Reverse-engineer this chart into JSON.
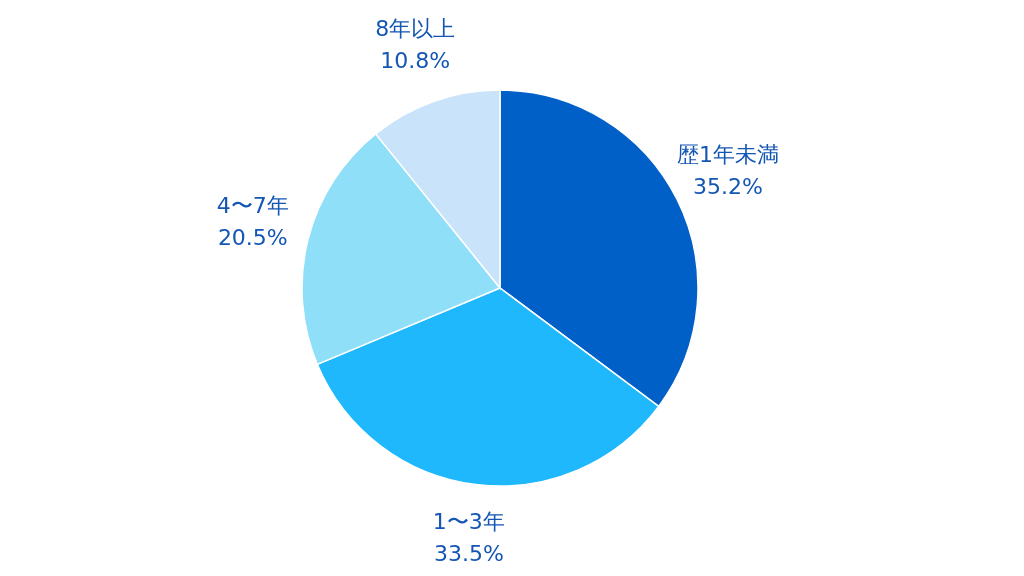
{
  "chart_data": {
    "type": "pie",
    "categories": [
      "歴1年未満",
      "1〜3年",
      "4〜7年",
      "8年以上"
    ],
    "values": [
      35.2,
      33.5,
      20.5,
      10.8
    ],
    "colors": [
      "#0060c8",
      "#1fb8fd",
      "#8fdff8",
      "#c9e3fb"
    ],
    "value_labels": [
      "35.2%",
      "33.5%",
      "20.5%",
      "10.8%"
    ]
  }
}
